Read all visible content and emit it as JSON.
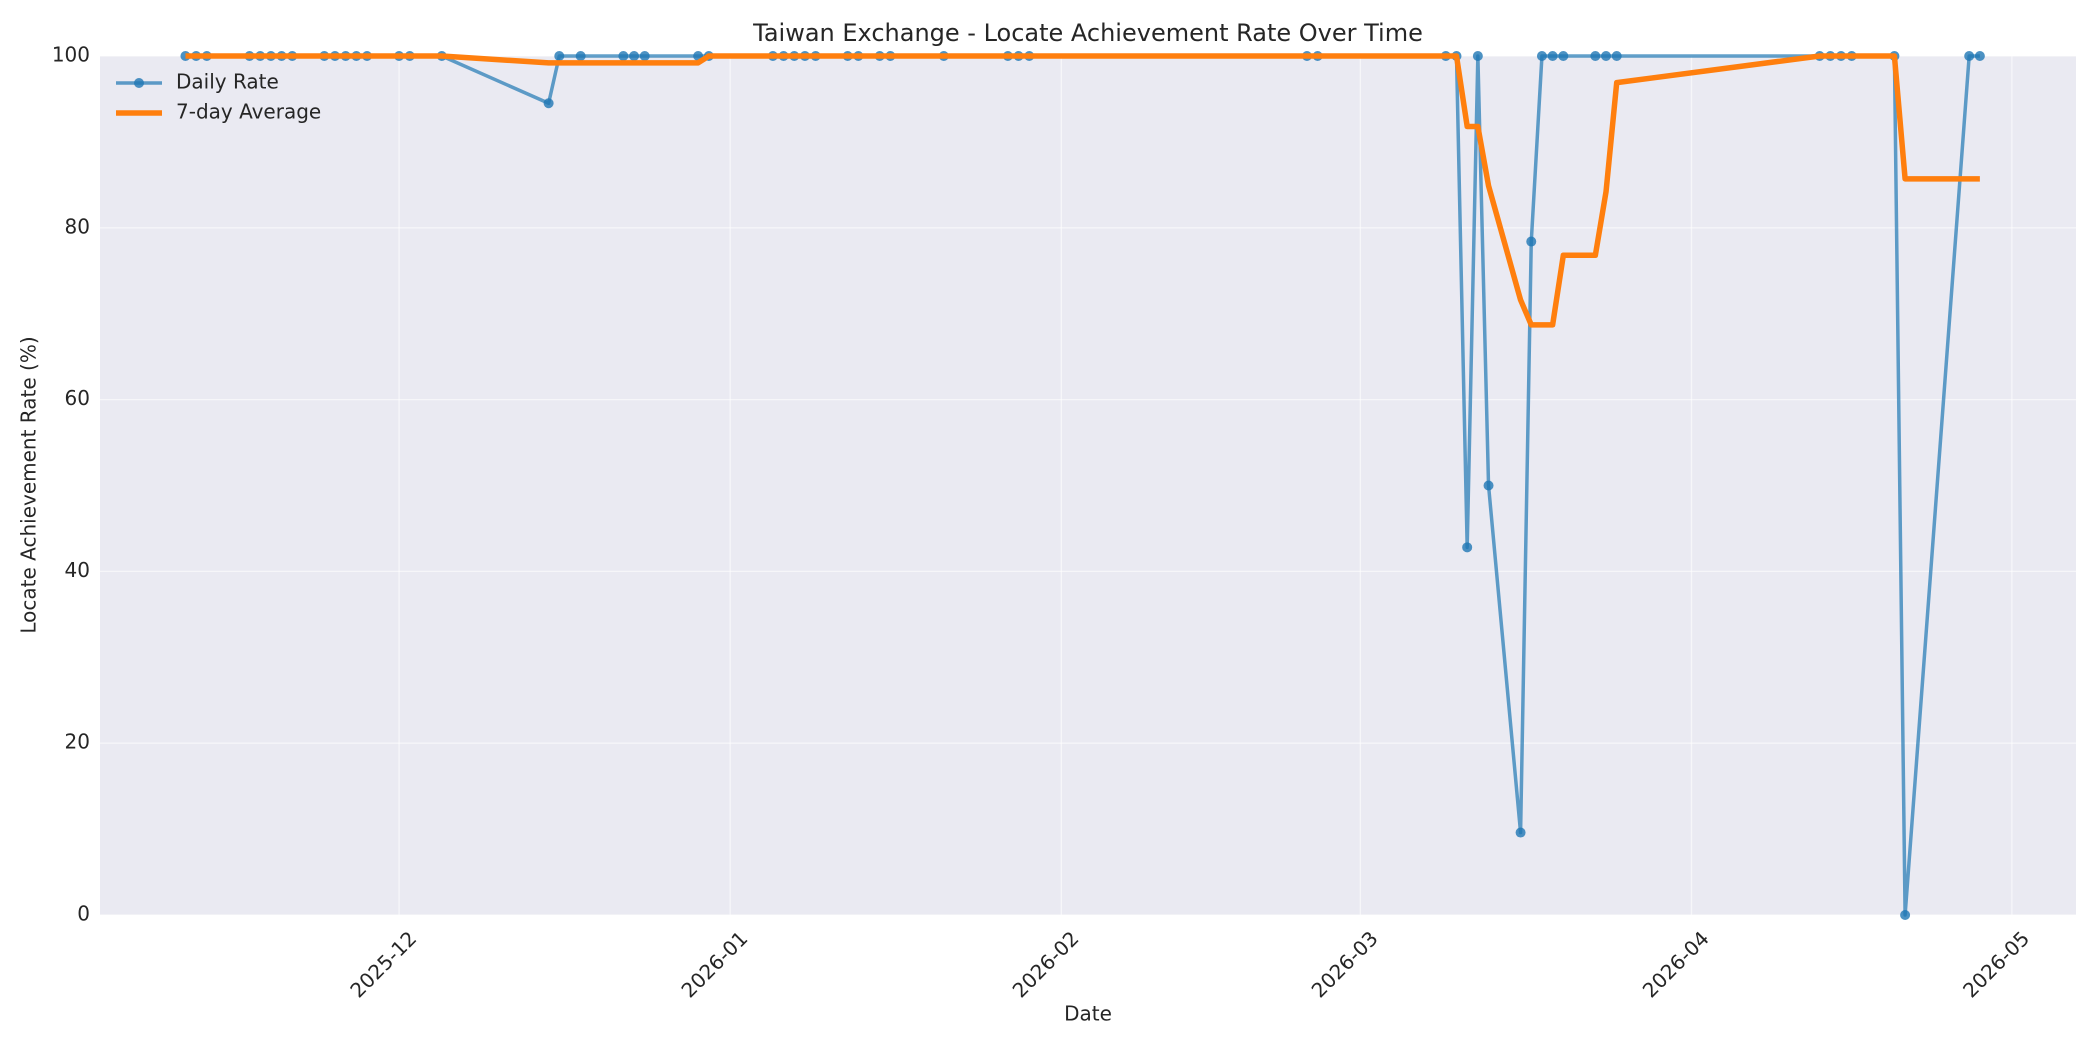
{
  "chart_data": {
    "type": "line",
    "title": "Taiwan Exchange - Locate Achievement Rate Over Time",
    "xlabel": "Date",
    "ylabel": "Locate Achievement Rate (%)",
    "x": [
      20403,
      20404,
      20405,
      20409,
      20410,
      20411,
      20412,
      20413,
      20416,
      20417,
      20418,
      20419,
      20420,
      20423,
      20424,
      20427,
      20437,
      20438,
      20440,
      20444,
      20445,
      20446,
      20451,
      20452,
      20458,
      20459,
      20460,
      20461,
      20462,
      20465,
      20466,
      20468,
      20469,
      20474,
      20480,
      20481,
      20482,
      20508,
      20509,
      20521,
      20522,
      20523,
      20524,
      20525,
      20528,
      20529,
      20530,
      20531,
      20532,
      20535,
      20536,
      20537,
      20556,
      20557,
      20558,
      20559,
      20563,
      20564,
      20570,
      20571
    ],
    "series": [
      {
        "name": "Daily Rate",
        "color": "#1f77b4",
        "marker": true,
        "values": [
          100,
          100,
          100,
          100,
          100,
          100,
          100,
          100,
          100,
          100,
          100,
          100,
          100,
          100,
          100,
          100,
          94.5,
          100,
          100,
          100,
          100,
          100,
          100,
          100,
          100,
          100,
          100,
          100,
          100,
          100,
          100,
          100,
          100,
          100,
          100,
          100,
          100,
          100,
          100,
          100,
          100,
          42.8,
          100,
          50,
          9.6,
          78.4,
          100,
          100,
          100,
          100,
          100,
          100,
          100,
          100,
          100,
          100,
          100,
          0,
          100,
          100
        ]
      },
      {
        "name": "7-day Average",
        "color": "#ff7f0e",
        "marker": false,
        "values": [
          100,
          100,
          100,
          100,
          100,
          100,
          100,
          100,
          100,
          100,
          100,
          100,
          100,
          100,
          100,
          100,
          99.2,
          99.2,
          99.2,
          99.2,
          99.2,
          99.2,
          99.2,
          100,
          100,
          100,
          100,
          100,
          100,
          100,
          100,
          100,
          100,
          100,
          100,
          100,
          100,
          100,
          100,
          100,
          100,
          91.8,
          91.8,
          84.9,
          71.6,
          68.7,
          68.7,
          68.7,
          76.8,
          76.8,
          84.2,
          96.9,
          100,
          100,
          100,
          100,
          100,
          85.7,
          85.7,
          85.7
        ]
      }
    ],
    "xlim": [
      20395,
      20580
    ],
    "xticks": [
      {
        "value": 20423,
        "label": "2025-12"
      },
      {
        "value": 20454,
        "label": "2026-01"
      },
      {
        "value": 20485,
        "label": "2026-02"
      },
      {
        "value": 20513,
        "label": "2026-03"
      },
      {
        "value": 20544,
        "label": "2026-04"
      },
      {
        "value": 20574,
        "label": "2026-05"
      }
    ],
    "ylim": [
      0,
      100
    ],
    "yticks": [
      0,
      20,
      40,
      60,
      80,
      100
    ],
    "grid": true,
    "legend": "upper left"
  }
}
